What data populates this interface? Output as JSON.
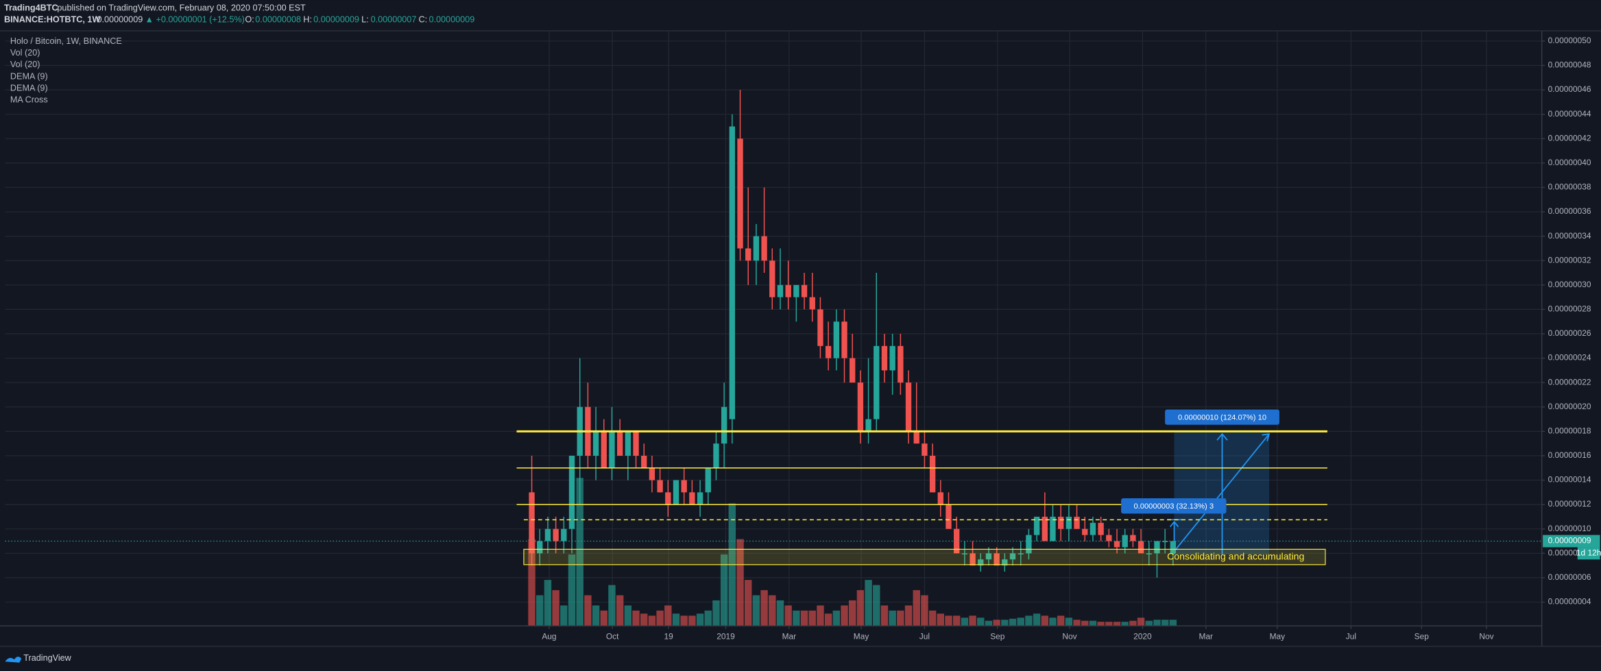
{
  "header": {
    "author": "Trading4BTC",
    "published": "published on TradingView.com, February 08, 2020 07:50:00 EST",
    "symbol": "BINANCE:HOTBTC, 1W",
    "price": "0.00000009",
    "change": "▲ +0.00000001 (+12.5%)",
    "o_label": "O:",
    "o": "0.00000008",
    "h_label": "H:",
    "h": "0.00000009",
    "l_label": "L:",
    "l": "0.00000007",
    "c_label": "C:",
    "c": "0.00000009"
  },
  "legend": [
    "Holo / Bitcoin, 1W, BINANCE",
    "Vol (20)",
    "Vol (20)",
    "DEMA (9)",
    "DEMA (9)",
    "MA Cross"
  ],
  "chart_data": {
    "type": "candlestick",
    "open": [
      1.3e-07,
      8e-08,
      9e-08,
      1e-07,
      9e-08,
      1e-07,
      1.6e-07,
      2e-07,
      1.6e-07,
      1.8e-07,
      1.5e-07,
      1.8e-07,
      1.6e-07,
      1.8e-07,
      1.6e-07,
      1.5e-07,
      1.4e-07,
      1.3e-07,
      1.2e-07,
      1.4e-07,
      1.3e-07,
      1.2e-07,
      1.3e-07,
      1.5e-07,
      1.7e-07,
      1.9e-07,
      4.2e-07,
      3.3e-07,
      3.2e-07,
      3.4e-07,
      3.2e-07,
      2.9e-07,
      3e-07,
      2.9e-07,
      3e-07,
      2.9e-07,
      2.8e-07,
      2.5e-07,
      2.4e-07,
      2.7e-07,
      2.4e-07,
      2.2e-07,
      1.8e-07,
      1.9e-07,
      2.5e-07,
      2.3e-07,
      2.5e-07,
      2.2e-07,
      1.8e-07,
      1.7e-07,
      1.6e-07,
      1.3e-07,
      1.2e-07,
      1e-07,
      8e-08,
      8e-08,
      7e-08,
      7.5e-08,
      8e-08,
      7e-08,
      7.5e-08,
      8e-08,
      8e-08,
      9.5e-08,
      1.1e-07,
      9e-08,
      1.1e-07,
      1e-07,
      1.1e-07,
      1e-07,
      9.5e-08,
      1.05e-07,
      9.5e-08,
      9e-08,
      8.5e-08,
      9.5e-08,
      9e-08,
      8e-08,
      8e-08,
      9e-08,
      8e-08
    ],
    "high": [
      1.6e-07,
      1e-07,
      1.1e-07,
      1.1e-07,
      1.1e-07,
      1.6e-07,
      2.4e-07,
      2.2e-07,
      2e-07,
      1.9e-07,
      2e-07,
      1.9e-07,
      1.8e-07,
      1.8e-07,
      1.7e-07,
      1.6e-07,
      1.5e-07,
      1.4e-07,
      1.4e-07,
      1.5e-07,
      1.4e-07,
      1.4e-07,
      1.5e-07,
      1.8e-07,
      2.2e-07,
      4.4e-07,
      4.6e-07,
      3.8e-07,
      3.5e-07,
      3.8e-07,
      3.3e-07,
      3.3e-07,
      3.2e-07,
      3e-07,
      3.1e-07,
      3.1e-07,
      2.9e-07,
      2.7e-07,
      2.8e-07,
      2.8e-07,
      2.6e-07,
      2.3e-07,
      2.4e-07,
      3.1e-07,
      2.6e-07,
      2.6e-07,
      2.6e-07,
      2.3e-07,
      2.2e-07,
      1.8e-07,
      1.7e-07,
      1.4e-07,
      1.3e-07,
      1.1e-07,
      9e-08,
      9e-08,
      8e-08,
      8.5e-08,
      8.5e-08,
      8e-08,
      8.5e-08,
      9e-08,
      1e-07,
      1.1e-07,
      1.3e-07,
      1.2e-07,
      1.2e-07,
      1.2e-07,
      1.2e-07,
      1.1e-07,
      1.1e-07,
      1.1e-07,
      1e-07,
      1e-07,
      1e-07,
      1e-07,
      1e-07,
      9e-08,
      9e-08,
      1e-07,
      9e-08
    ],
    "low": [
      7e-08,
      7e-08,
      8e-08,
      8e-08,
      8e-08,
      8e-08,
      1.2e-07,
      1.5e-07,
      1.4e-07,
      1.5e-07,
      1.4e-07,
      1.6e-07,
      1.4e-07,
      1.5e-07,
      1.5e-07,
      1.3e-07,
      1.3e-07,
      1.1e-07,
      1.2e-07,
      1.2e-07,
      1.2e-07,
      1.1e-07,
      1.2e-07,
      1.4e-07,
      1.5e-07,
      1.7e-07,
      3.2e-07,
      3e-07,
      3e-07,
      3.1e-07,
      2.8e-07,
      2.8e-07,
      2.8e-07,
      2.7e-07,
      2.8e-07,
      2.7e-07,
      2.4e-07,
      2.3e-07,
      2.3e-07,
      2.2e-07,
      2.2e-07,
      1.7e-07,
      1.7e-07,
      1.8e-07,
      2.2e-07,
      2.1e-07,
      2.1e-07,
      1.7e-07,
      1.7e-07,
      1.5e-07,
      1.3e-07,
      1.1e-07,
      1e-07,
      8e-08,
      7e-08,
      7e-08,
      6.5e-08,
      7e-08,
      7e-08,
      6.5e-08,
      7e-08,
      7e-08,
      7.5e-08,
      9e-08,
      9e-08,
      9e-08,
      9e-08,
      9e-08,
      1e-07,
      9e-08,
      9e-08,
      9e-08,
      8.5e-08,
      8e-08,
      8e-08,
      8.5e-08,
      8e-08,
      7e-08,
      6e-08,
      8e-08,
      7e-08
    ],
    "close": [
      8e-08,
      9e-08,
      1e-07,
      9e-08,
      1e-07,
      1.6e-07,
      2e-07,
      1.6e-07,
      1.8e-07,
      1.5e-07,
      1.8e-07,
      1.6e-07,
      1.8e-07,
      1.6e-07,
      1.5e-07,
      1.4e-07,
      1.3e-07,
      1.2e-07,
      1.4e-07,
      1.3e-07,
      1.2e-07,
      1.3e-07,
      1.5e-07,
      1.7e-07,
      2e-07,
      4.3e-07,
      3.3e-07,
      3.2e-07,
      3.4e-07,
      3.2e-07,
      2.9e-07,
      3e-07,
      2.9e-07,
      3e-07,
      2.9e-07,
      2.8e-07,
      2.5e-07,
      2.4e-07,
      2.7e-07,
      2.4e-07,
      2.2e-07,
      1.8e-07,
      1.9e-07,
      2.5e-07,
      2.3e-07,
      2.5e-07,
      2.2e-07,
      1.8e-07,
      1.7e-07,
      1.6e-07,
      1.3e-07,
      1.2e-07,
      1e-07,
      8e-08,
      8e-08,
      7e-08,
      7.5e-08,
      8e-08,
      7e-08,
      7.5e-08,
      8e-08,
      8e-08,
      9.5e-08,
      1.1e-07,
      9e-08,
      1.1e-07,
      1e-07,
      1.1e-07,
      1e-07,
      9.5e-08,
      1.05e-07,
      9.5e-08,
      9e-08,
      8.5e-08,
      9.5e-08,
      9e-08,
      8e-08,
      8e-08,
      9e-08,
      9e-08,
      9e-08
    ],
    "volume": [
      85,
      30,
      45,
      35,
      20,
      70,
      145,
      30,
      20,
      15,
      40,
      30,
      20,
      15,
      12,
      10,
      15,
      20,
      12,
      10,
      10,
      12,
      15,
      25,
      70,
      120,
      85,
      45,
      30,
      35,
      30,
      25,
      20,
      15,
      15,
      15,
      20,
      12,
      15,
      20,
      25,
      35,
      45,
      40,
      20,
      15,
      15,
      20,
      35,
      30,
      15,
      12,
      10,
      10,
      8,
      10,
      8,
      5,
      6,
      6,
      7,
      8,
      10,
      12,
      10,
      8,
      10,
      8,
      6,
      5,
      5,
      4,
      4,
      4,
      4,
      5,
      8,
      5,
      6,
      6,
      6
    ],
    "up_color": "#26a69a",
    "down_color": "#ef5350",
    "xlim": [
      -65.7,
      126
    ],
    "xticks": [
      {
        "value": 2.17,
        "label": "Aug"
      },
      {
        "value": 10.06,
        "label": "Oct"
      },
      {
        "value": 17.07,
        "label": "19"
      },
      {
        "value": 24.2,
        "label": "2019"
      },
      {
        "value": 32.1,
        "label": "Mar"
      },
      {
        "value": 41.1,
        "label": "May"
      },
      {
        "value": 49.0,
        "label": "Jul"
      },
      {
        "value": 58.1,
        "label": "Sep"
      },
      {
        "value": 67.1,
        "label": "Nov"
      },
      {
        "value": 76.2,
        "label": "2020"
      },
      {
        "value": 84.1,
        "label": "Mar"
      },
      {
        "value": 93.0,
        "label": "May"
      },
      {
        "value": 102.2,
        "label": "Jul"
      },
      {
        "value": 111.0,
        "label": "Sep"
      },
      {
        "value": 119.1,
        "label": "Nov"
      }
    ],
    "ylim": [
      2.05e-08,
      5.084e-07
    ],
    "yticks": [
      {
        "value": 4e-08,
        "label": "0.00000004"
      },
      {
        "value": 6e-08,
        "label": "0.00000006"
      },
      {
        "value": 8e-08,
        "label": "0.00000008"
      },
      {
        "value": 1e-07,
        "label": "0.00000010"
      },
      {
        "value": 1.2e-07,
        "label": "0.00000012"
      },
      {
        "value": 1.4e-07,
        "label": "0.00000014"
      },
      {
        "value": 1.6e-07,
        "label": "0.00000016"
      },
      {
        "value": 1.8e-07,
        "label": "0.00000018"
      },
      {
        "value": 2e-07,
        "label": "0.00000020"
      },
      {
        "value": 2.2e-07,
        "label": "0.00000022"
      },
      {
        "value": 2.4e-07,
        "label": "0.00000024"
      },
      {
        "value": 2.6e-07,
        "label": "0.00000026"
      },
      {
        "value": 2.8e-07,
        "label": "0.00000028"
      },
      {
        "value": 3e-07,
        "label": "0.00000030"
      },
      {
        "value": 3.2e-07,
        "label": "0.00000032"
      },
      {
        "value": 3.4e-07,
        "label": "0.00000034"
      },
      {
        "value": 3.6e-07,
        "label": "0.00000036"
      },
      {
        "value": 3.8e-07,
        "label": "0.00000038"
      },
      {
        "value": 4e-07,
        "label": "0.00000040"
      },
      {
        "value": 4.2e-07,
        "label": "0.00000042"
      },
      {
        "value": 4.4e-07,
        "label": "0.00000044"
      },
      {
        "value": 4.6e-07,
        "label": "0.00000046"
      },
      {
        "value": 4.8e-07,
        "label": "0.00000048"
      },
      {
        "value": 5e-07,
        "label": "0.00000050"
      }
    ],
    "grid": true,
    "levels": [
      1.8e-07,
      1.5e-07,
      1.2e-07
    ],
    "dashed_level": 1.075e-07,
    "last_price": {
      "value": 9e-08,
      "label": "0.00000009"
    },
    "countdown": "1d 12h",
    "zone": {
      "label": "Consolidating and accumulating",
      "top": 8.33e-08,
      "bottom": 7.07e-08
    },
    "measures": [
      "0.00000003 (32.13%) 3",
      "0.00000010 (124.07%) 10"
    ]
  },
  "footer": "TradingView"
}
